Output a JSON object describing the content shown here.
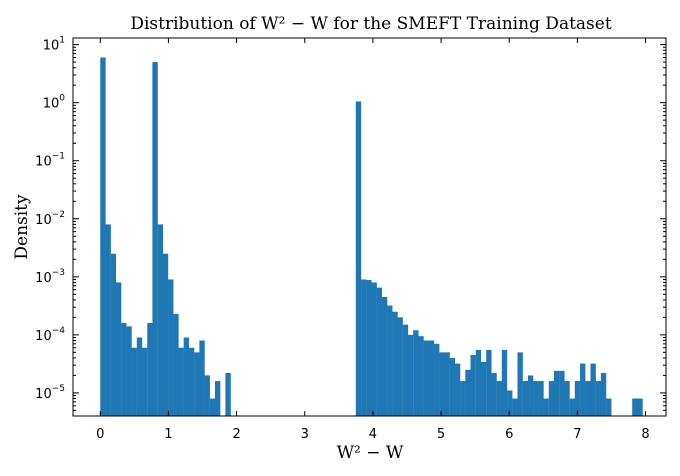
{
  "chart_data": {
    "type": "bar",
    "subtype": "histogram",
    "title": "Distribution of W² − W for the SMEFT Training Dataset",
    "xlabel": "W² − W",
    "ylabel": "Density",
    "yscale": "log",
    "xlim": [
      -0.4,
      8.3
    ],
    "ylim": [
      4e-06,
      13
    ],
    "color": "#1f77b4",
    "bin_width": 0.0765,
    "x_ticks": [
      "0",
      "1",
      "2",
      "3",
      "4",
      "5",
      "6",
      "7",
      "8"
    ],
    "y_ticks": [
      {
        "base": "10",
        "exp": "1"
      },
      {
        "base": "10",
        "exp": "0"
      },
      {
        "base": "10",
        "exp": "−1"
      },
      {
        "base": "10",
        "exp": "−2"
      },
      {
        "base": "10",
        "exp": "−3"
      },
      {
        "base": "10",
        "exp": "−4"
      },
      {
        "base": "10",
        "exp": "−5"
      }
    ],
    "bins": [
      [
        0.0,
        6.0
      ],
      [
        0.077,
        0.008
      ],
      [
        0.153,
        0.0025
      ],
      [
        0.23,
        0.0008
      ],
      [
        0.306,
        0.00016
      ],
      [
        0.383,
        0.00014
      ],
      [
        0.459,
        6e-05
      ],
      [
        0.536,
        9e-05
      ],
      [
        0.612,
        6e-05
      ],
      [
        0.689,
        0.00016
      ],
      [
        0.765,
        5.0
      ],
      [
        0.842,
        0.008
      ],
      [
        0.918,
        0.0025
      ],
      [
        0.995,
        0.0009
      ],
      [
        1.071,
        0.00023
      ],
      [
        1.148,
        6e-05
      ],
      [
        1.224,
        9e-05
      ],
      [
        1.301,
        6e-05
      ],
      [
        1.377,
        5e-05
      ],
      [
        1.454,
        8e-05
      ],
      [
        1.53,
        2e-05
      ],
      [
        1.607,
        8e-06
      ],
      [
        1.683,
        1.6e-05
      ],
      [
        1.836,
        2.2e-05
      ],
      [
        3.749,
        1.05
      ],
      [
        3.826,
        0.0009
      ],
      [
        3.902,
        0.00088
      ],
      [
        3.979,
        0.0008
      ],
      [
        4.055,
        0.00065
      ],
      [
        4.132,
        0.00045
      ],
      [
        4.208,
        0.00032
      ],
      [
        4.285,
        0.00025
      ],
      [
        4.361,
        0.0002
      ],
      [
        4.438,
        0.00015
      ],
      [
        4.514,
        0.0001
      ],
      [
        4.591,
        0.00012
      ],
      [
        4.667,
        9.5e-05
      ],
      [
        4.744,
        8e-05
      ],
      [
        4.82,
        8e-05
      ],
      [
        4.897,
        7e-05
      ],
      [
        4.973,
        5e-05
      ],
      [
        5.05,
        5e-05
      ],
      [
        5.126,
        4e-05
      ],
      [
        5.203,
        3.2e-05
      ],
      [
        5.279,
        1.6e-05
      ],
      [
        5.356,
        2.5e-05
      ],
      [
        5.432,
        4.5e-05
      ],
      [
        5.509,
        5.5e-05
      ],
      [
        5.585,
        3.4e-05
      ],
      [
        5.662,
        5.5e-05
      ],
      [
        5.738,
        2.2e-05
      ],
      [
        5.815,
        1.6e-05
      ],
      [
        5.891,
        5.5e-05
      ],
      [
        5.968,
        1.1e-05
      ],
      [
        6.044,
        8e-06
      ],
      [
        6.121,
        5e-05
      ],
      [
        6.197,
        1.6e-05
      ],
      [
        6.274,
        2e-05
      ],
      [
        6.35,
        1.6e-05
      ],
      [
        6.427,
        1.6e-05
      ],
      [
        6.503,
        8e-06
      ],
      [
        6.58,
        1.6e-05
      ],
      [
        6.656,
        2.4e-05
      ],
      [
        6.733,
        2.4e-05
      ],
      [
        6.809,
        1.6e-05
      ],
      [
        6.886,
        8e-06
      ],
      [
        6.962,
        1.6e-05
      ],
      [
        7.039,
        3.2e-05
      ],
      [
        7.115,
        1.6e-05
      ],
      [
        7.192,
        3.2e-05
      ],
      [
        7.268,
        1.6e-05
      ],
      [
        7.345,
        2.2e-05
      ],
      [
        7.421,
        8e-06
      ],
      [
        7.804,
        8e-06
      ],
      [
        7.88,
        8e-06
      ]
    ]
  }
}
